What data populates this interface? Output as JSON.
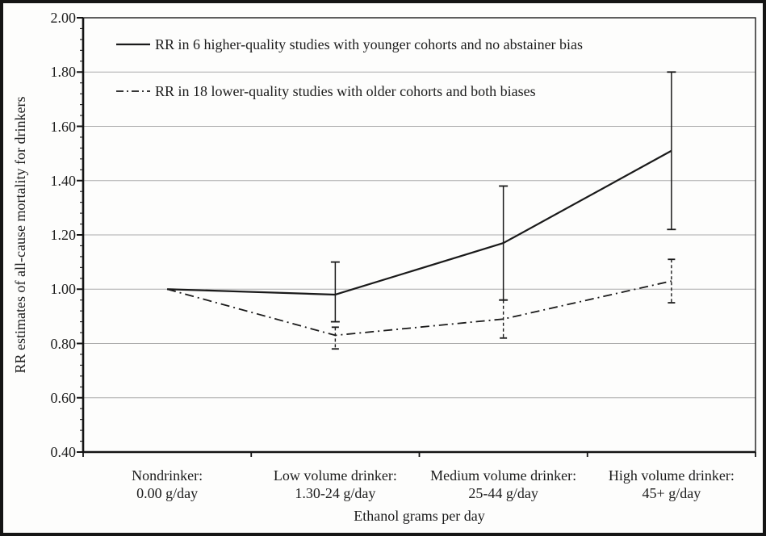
{
  "figure": {
    "description": "Line chart with 95% confidence-interval error bars comparing relative-risk estimates of all-cause mortality across drinking categories",
    "background_color": "#fdfdfc",
    "frame_color": "#151515",
    "line_color": "#1a1a1a",
    "gridline_color": "#ababab"
  },
  "chart_data": {
    "type": "line",
    "title": "",
    "xlabel": "Ethanol grams per day",
    "ylabel": "RR estimates of all-cause mortality for drinkers",
    "ylim": [
      0.4,
      2.0
    ],
    "ytick_interval": 0.2,
    "ytick_labels": [
      "2.00",
      "1.80",
      "1.60",
      "1.40",
      "1.20",
      "1.00",
      "0.80",
      "0.60",
      "0.40"
    ],
    "grid": "horizontal major gridlines on",
    "legend_position": "top-left inside plot area",
    "categories": [
      {
        "line1": "Nondrinker:",
        "line2": "0.00 g/day"
      },
      {
        "line1": "Low volume drinker:",
        "line2": "1.30-24 g/day"
      },
      {
        "line1": "Medium volume drinker:",
        "line2": "25-44 g/day"
      },
      {
        "line1": "High volume drinker:",
        "line2": "45+ g/day"
      }
    ],
    "series": [
      {
        "name": "RR in 6 higher-quality studies with younger cohorts and no abstainer bias",
        "line_style": "solid",
        "color": "#1a1a1a",
        "values": [
          1.0,
          0.98,
          1.17,
          1.51
        ],
        "ci_low": [
          null,
          0.88,
          0.96,
          1.22
        ],
        "ci_high": [
          null,
          1.1,
          1.38,
          1.8
        ]
      },
      {
        "name": "RR in 18 lower-quality studies with older cohorts and both biases",
        "line_style": "dash-dot",
        "color": "#1a1a1a",
        "values": [
          1.0,
          0.83,
          0.89,
          1.03
        ],
        "ci_low": [
          null,
          0.78,
          0.82,
          0.95
        ],
        "ci_high": [
          null,
          0.86,
          0.96,
          1.11
        ]
      }
    ]
  }
}
